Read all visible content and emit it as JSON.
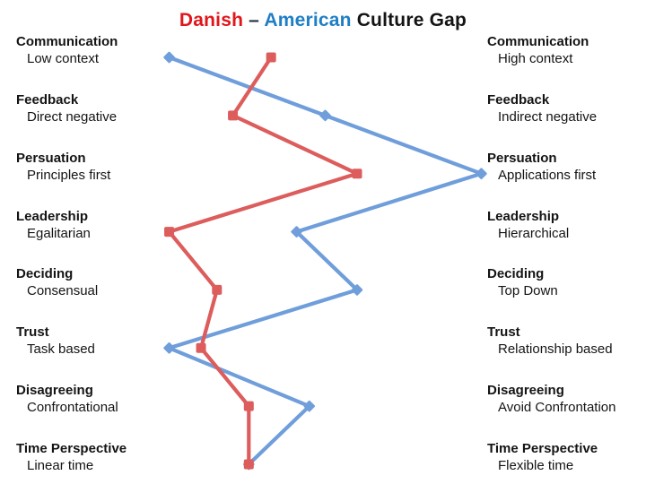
{
  "title": {
    "danish": "Danish",
    "dash": "–",
    "american": "American",
    "rest": "Culture Gap"
  },
  "chart_data": {
    "type": "line",
    "title": "Danish – American Culture Gap",
    "orientation": "vertical category axis, horizontal value axis",
    "value_range": [
      0,
      100
    ],
    "value_note": "0 = left trait extreme, 100 = right trait extreme (estimated from marker positions)",
    "grid": "off",
    "legend": "in title (color coded)",
    "rows": [
      {
        "dimension": "Communication",
        "left": "Low context",
        "right": "High context"
      },
      {
        "dimension": "Feedback",
        "left": "Direct negative",
        "right": "Indirect negative"
      },
      {
        "dimension": "Persuation",
        "left": "Principles first",
        "right": "Applications first"
      },
      {
        "dimension": "Leadership",
        "left": "Egalitarian",
        "right": "Hierarchical"
      },
      {
        "dimension": "Deciding",
        "left": "Consensual",
        "right": "Top Down"
      },
      {
        "dimension": "Trust",
        "left": "Task based",
        "right": "Relationship based"
      },
      {
        "dimension": "Disagreeing",
        "left": "Confrontational",
        "right": "Avoid Confrontation"
      },
      {
        "dimension": "Time Perspective",
        "left": "Linear time",
        "right": "Flexible time"
      }
    ],
    "series": [
      {
        "name": "American",
        "color": "#6f9edb",
        "marker": "diamond",
        "values": [
          1,
          50,
          99,
          41,
          60,
          1,
          45,
          26
        ]
      },
      {
        "name": "Danish",
        "color": "#dd5c5c",
        "marker": "square",
        "values": [
          33,
          21,
          60,
          1,
          16,
          11,
          26,
          26
        ]
      }
    ]
  }
}
